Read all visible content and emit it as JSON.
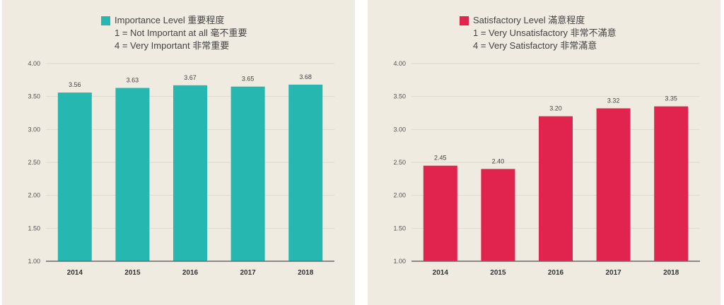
{
  "chart_data": [
    {
      "type": "bar",
      "legend": {
        "title": "Importance Level 重要程度",
        "line1": "1 = Not Important at all 毫不重要",
        "line2": "4 = Very Important 非常重要"
      },
      "color": "#26b8b0",
      "categories": [
        "2014",
        "2015",
        "2016",
        "2017",
        "2018"
      ],
      "values": [
        3.56,
        3.63,
        3.67,
        3.65,
        3.68
      ],
      "value_labels": [
        "3.56",
        "3.63",
        "3.67",
        "3.65",
        "3.68"
      ],
      "ylim": [
        1.0,
        4.0
      ],
      "yticks": [
        1.0,
        1.5,
        2.0,
        2.5,
        3.0,
        3.5,
        4.0
      ],
      "ytick_labels": [
        "1.00",
        "1.50",
        "2.00",
        "2.50",
        "3.00",
        "3.50",
        "4.00"
      ],
      "grid": true,
      "legend_position": "top"
    },
    {
      "type": "bar",
      "legend": {
        "title": "Satisfactory Level 滿意程度",
        "line1": "1 = Very Unsatisfactory 非常不滿意",
        "line2": "4 = Very Satisfactory 非常滿意"
      },
      "color": "#e0244d",
      "categories": [
        "2014",
        "2015",
        "2016",
        "2017",
        "2018"
      ],
      "values": [
        2.45,
        2.4,
        3.2,
        3.32,
        3.35
      ],
      "value_labels": [
        "2.45",
        "2.40",
        "3.20",
        "3.32",
        "3.35"
      ],
      "ylim": [
        1.0,
        4.0
      ],
      "yticks": [
        1.0,
        1.5,
        2.0,
        2.5,
        3.0,
        3.5,
        4.0
      ],
      "ytick_labels": [
        "1.00",
        "1.50",
        "2.00",
        "2.50",
        "3.00",
        "3.50",
        "4.00"
      ],
      "grid": true,
      "legend_position": "top"
    }
  ]
}
